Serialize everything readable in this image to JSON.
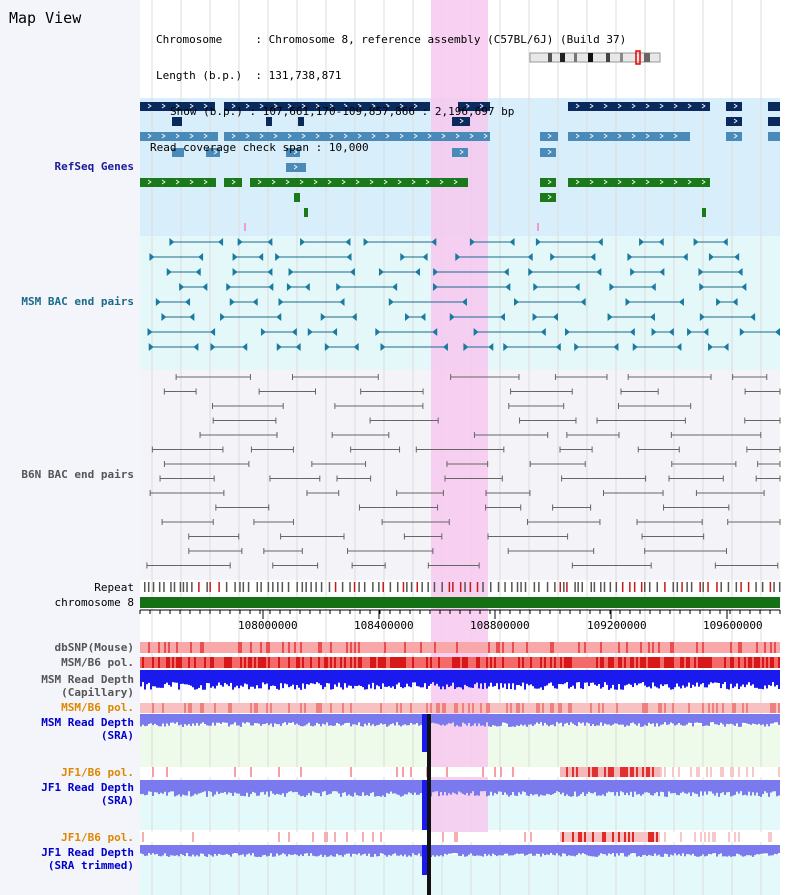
{
  "page_title": "Map View",
  "info": {
    "chromosome_key": "Chromosome",
    "chromosome_value": "Chromosome 8, reference assembly (C57BL/6J) (Build 37)",
    "length_key": "Length (b.p.)",
    "length_value": "131,738,871",
    "show_key": "Show (b.p.)",
    "show_value": "107,661,170-109,857,866 : 2,196,697 bp",
    "coverage_key": "Read coverage check span",
    "coverage_value": "10,000"
  },
  "tracks": {
    "refseq": "RefSeq Genes",
    "msm_bac": "MSM BAC end pairs",
    "b6n_bac": "B6N BAC end pairs",
    "repeat": "Repeat",
    "chromosome": "chromosome 8",
    "dbsnp": "dbSNP(Mouse)",
    "msm_pol": "MSM/B6 pol.",
    "msm_depth_cap": "MSM Read Depth\n(Capillary)",
    "msm_pol2": "MSM/B6 pol.",
    "msm_depth_sra": "MSM Read Depth\n(SRA)",
    "jf1_pol": "JF1/B6 pol.",
    "jf1_depth_sra": "JF1 Read Depth\n(SRA)",
    "jf1_pol2": "JF1/B6 pol.",
    "jf1_depth_trim": "JF1 Read Depth\n(SRA trimmed)"
  },
  "axis_ticks": [
    "108000000",
    "108400000",
    "108800000",
    "109200000",
    "109600000"
  ],
  "colors": {
    "refseq_label": "#1a1a9a",
    "msm_label": "#1a6a8a",
    "b6n_label": "#555555",
    "orange_label": "#dd8800",
    "blue_label": "#0000cc",
    "highlight": "#f7c8ee",
    "gene_dark": "#0a2a5e",
    "gene_mid": "#4a8ab8",
    "gene_green": "#1a7a1a",
    "depth_blue": "#1a1aee",
    "depth_light": "#7a7aee"
  }
}
